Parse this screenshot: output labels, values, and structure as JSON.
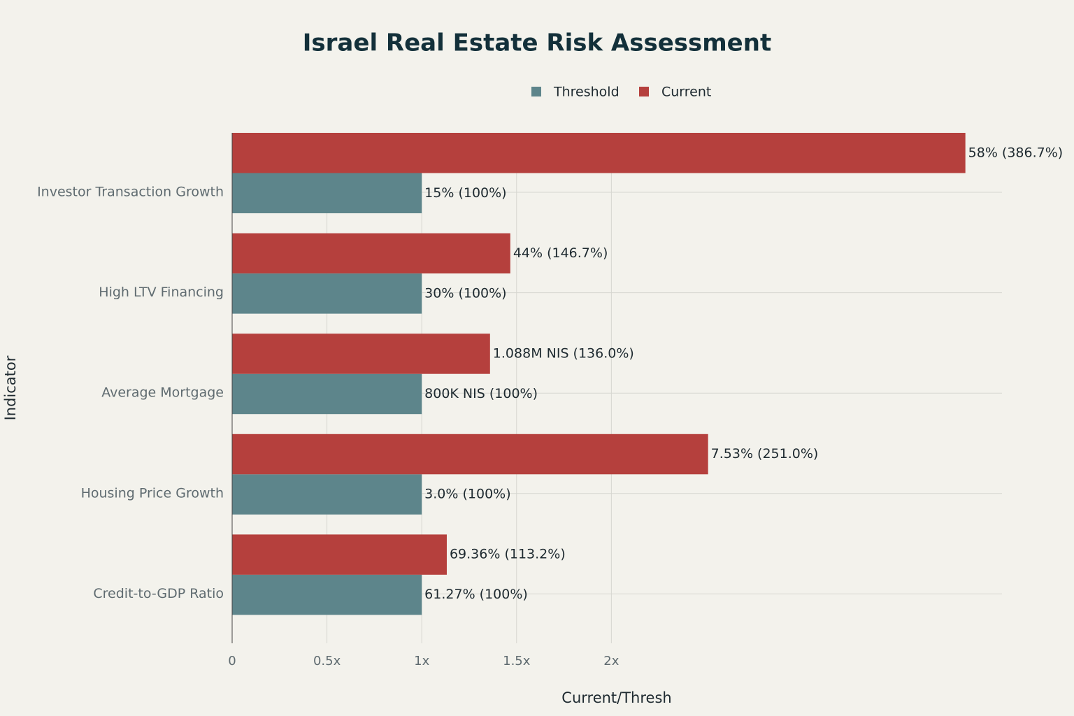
{
  "chart_data": {
    "type": "bar",
    "orientation": "horizontal",
    "title": "Israel Real Estate Risk Assessment",
    "x_label": "Current/Thresh",
    "y_label": "Indicator",
    "categories": [
      "Investor Transaction Growth",
      "High LTV Financing",
      "Average Mortgage",
      "Housing Price Growth",
      "Credit-to-GDP Ratio"
    ],
    "series": [
      {
        "name": "Threshold",
        "color": "#5d858b",
        "values": [
          1,
          1,
          1,
          1,
          1
        ],
        "value_labels": [
          "15% (100%)",
          "30% (100%)",
          "800K NIS (100%)",
          "3.0% (100%)",
          "61.27% (100%)"
        ]
      },
      {
        "name": "Current",
        "color": "#b5403d",
        "values": [
          3.867,
          1.467,
          1.36,
          2.51,
          1.132
        ],
        "value_labels": [
          "58% (386.7%)",
          "44% (146.7%)",
          "1.088M NIS (136.0%)",
          "7.53% (251.0%)",
          "69.36% (113.2%)"
        ]
      }
    ],
    "xlim": [
      0,
      4.06
    ],
    "xticks": [
      0,
      {
        "value": 0.5,
        "label": "0.5x"
      },
      {
        "value": 1,
        "label": "1x"
      },
      {
        "value": 1.5,
        "label": "1.5x"
      },
      {
        "value": 2,
        "label": "2x"
      }
    ],
    "grid": true,
    "legend": "top"
  }
}
